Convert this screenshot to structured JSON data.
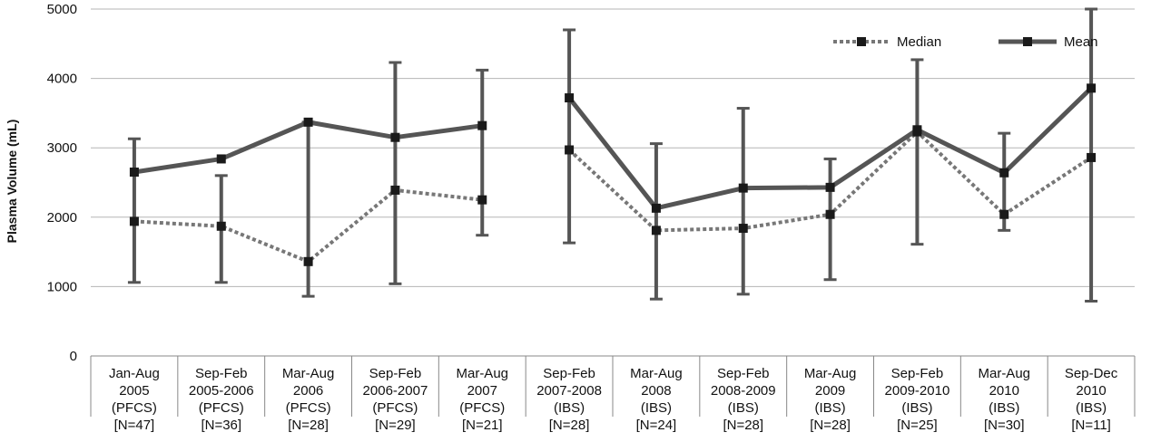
{
  "chart_data": {
    "type": "line",
    "ylabel": "Plasma Volume (mL)",
    "ylim": [
      0,
      5000
    ],
    "yticks": [
      0,
      1000,
      2000,
      3000,
      4000,
      5000
    ],
    "grid": true,
    "legend_position": "top-right",
    "categories": [
      [
        "Jan-Aug",
        "2005",
        "(PFCS)",
        "[N=47]"
      ],
      [
        "Sep-Feb",
        "2005-2006",
        "(PFCS)",
        "[N=36]"
      ],
      [
        "Mar-Aug",
        "2006",
        "(PFCS)",
        "[N=28]"
      ],
      [
        "Sep-Feb",
        "2006-2007",
        "(PFCS)",
        "[N=29]"
      ],
      [
        "Mar-Aug",
        "2007",
        "(PFCS)",
        "[N=21]"
      ],
      [
        "Sep-Feb",
        "2007-2008",
        "(IBS)",
        "[N=28]"
      ],
      [
        "Mar-Aug",
        "2008",
        "(IBS)",
        "[N=24]"
      ],
      [
        "Sep-Feb",
        "2008-2009",
        "(IBS)",
        "[N=28]"
      ],
      [
        "Mar-Aug",
        "2009",
        "(IBS)",
        "[N=28]"
      ],
      [
        "Sep-Feb",
        "2009-2010",
        "(IBS)",
        "[N=25]"
      ],
      [
        "Mar-Aug",
        "2010",
        "(IBS)",
        "[N=30]"
      ],
      [
        "Sep-Dec",
        "2010",
        "(IBS)",
        "[N=11]"
      ]
    ],
    "series": [
      {
        "name": "Median",
        "style": "dotted",
        "color": "#777777",
        "values": [
          1940,
          1870,
          1360,
          2390,
          2250,
          2970,
          1810,
          1840,
          2040,
          3230,
          2040,
          2860
        ],
        "segments": [
          [
            0,
            4
          ],
          [
            5,
            11
          ]
        ]
      },
      {
        "name": "Mean",
        "style": "solid",
        "color": "#555555",
        "values": [
          2650,
          2840,
          3370,
          3150,
          3320,
          3720,
          2130,
          2420,
          2430,
          3260,
          2640,
          3860
        ],
        "segments": [
          [
            0,
            4
          ],
          [
            5,
            11
          ]
        ],
        "error_low": [
          1060,
          1060,
          860,
          1040,
          1740,
          1630,
          820,
          890,
          1100,
          1610,
          1810,
          790
        ],
        "error_high": [
          3130,
          2600,
          3370,
          4230,
          4120,
          4700,
          3060,
          3570,
          2840,
          4270,
          3210,
          5000
        ]
      }
    ]
  }
}
